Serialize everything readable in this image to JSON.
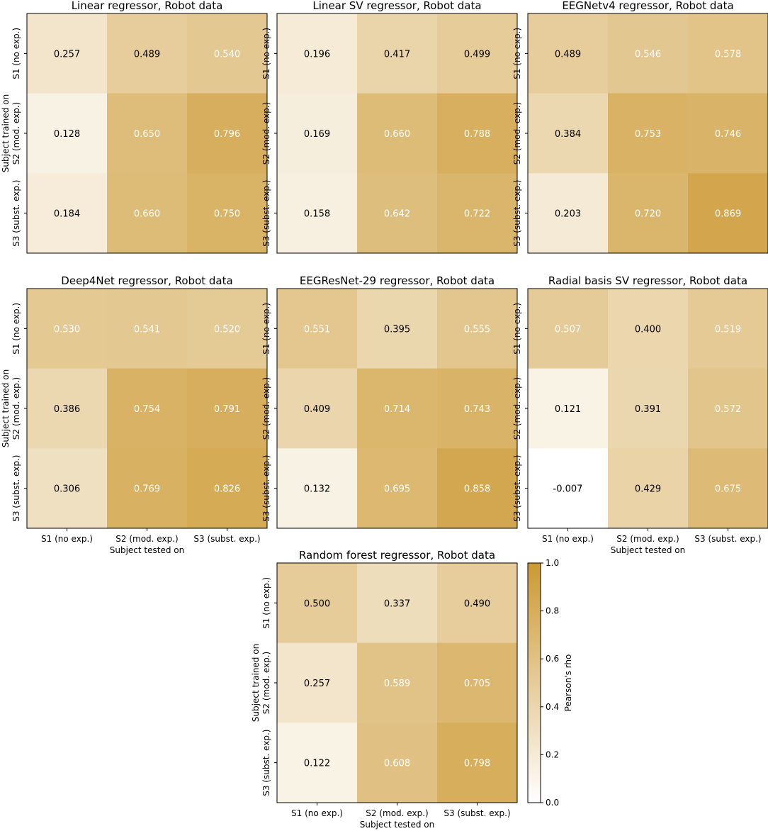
{
  "colors": {
    "low": "#ffffff",
    "high": "#cc9933",
    "frame": "#000000",
    "light_text": "#ffffff",
    "dark_text": "#000000"
  },
  "labels": {
    "rows": [
      "S1 (no exp.)",
      "S2 (mod. exp.)",
      "S3 (subst. exp.)"
    ],
    "cols": [
      "S1 (no exp.)",
      "S2 (mod. exp.)",
      "S3 (subst. exp.)"
    ],
    "ylabel": "Subject trained on",
    "xlabel": "Subject tested on"
  },
  "colorbar": {
    "label": "Pearson's rho",
    "range": [
      0.0,
      1.0
    ],
    "ticks": [
      "0.0",
      "0.2",
      "0.4",
      "0.6",
      "0.8",
      "1.0"
    ]
  },
  "chart_data": [
    {
      "type": "heatmap",
      "title": "Linear regressor, Robot data",
      "values": [
        [
          0.257,
          0.489,
          0.54
        ],
        [
          0.128,
          0.65,
          0.796
        ],
        [
          0.184,
          0.66,
          0.75
        ]
      ],
      "cell_labels": [
        [
          "0.257",
          "0.489",
          "0.540"
        ],
        [
          "0.128",
          "0.650",
          "0.796"
        ],
        [
          "0.184",
          "0.660",
          "0.750"
        ]
      ]
    },
    {
      "type": "heatmap",
      "title": "Linear SV regressor, Robot data",
      "values": [
        [
          0.196,
          0.417,
          0.499
        ],
        [
          0.169,
          0.66,
          0.788
        ],
        [
          0.158,
          0.642,
          0.722
        ]
      ],
      "cell_labels": [
        [
          "0.196",
          "0.417",
          "0.499"
        ],
        [
          "0.169",
          "0.660",
          "0.788"
        ],
        [
          "0.158",
          "0.642",
          "0.722"
        ]
      ]
    },
    {
      "type": "heatmap",
      "title": "EEGNetv4 regressor, Robot data",
      "values": [
        [
          0.489,
          0.546,
          0.578
        ],
        [
          0.384,
          0.753,
          0.746
        ],
        [
          0.203,
          0.72,
          0.869
        ]
      ],
      "cell_labels": [
        [
          "0.489",
          "0.546",
          "0.578"
        ],
        [
          "0.384",
          "0.753",
          "0.746"
        ],
        [
          "0.203",
          "0.720",
          "0.869"
        ]
      ]
    },
    {
      "type": "heatmap",
      "title": "Deep4Net regressor, Robot data",
      "values": [
        [
          0.53,
          0.541,
          0.52
        ],
        [
          0.386,
          0.754,
          0.791
        ],
        [
          0.306,
          0.769,
          0.826
        ]
      ],
      "cell_labels": [
        [
          "0.530",
          "0.541",
          "0.520"
        ],
        [
          "0.386",
          "0.754",
          "0.791"
        ],
        [
          "0.306",
          "0.769",
          "0.826"
        ]
      ]
    },
    {
      "type": "heatmap",
      "title": "EEGResNet-29 regressor, Robot data",
      "values": [
        [
          0.551,
          0.395,
          0.555
        ],
        [
          0.409,
          0.714,
          0.743
        ],
        [
          0.132,
          0.695,
          0.858
        ]
      ],
      "cell_labels": [
        [
          "0.551",
          "0.395",
          "0.555"
        ],
        [
          "0.409",
          "0.714",
          "0.743"
        ],
        [
          "0.132",
          "0.695",
          "0.858"
        ]
      ]
    },
    {
      "type": "heatmap",
      "title": "Radial basis SV regressor, Robot data",
      "values": [
        [
          0.507,
          0.4,
          0.519
        ],
        [
          0.121,
          0.391,
          0.572
        ],
        [
          -0.007,
          0.429,
          0.675
        ]
      ],
      "cell_labels": [
        [
          "0.507",
          "0.400",
          "0.519"
        ],
        [
          "0.121",
          "0.391",
          "0.572"
        ],
        [
          "-0.007",
          "0.429",
          "0.675"
        ]
      ]
    },
    {
      "type": "heatmap",
      "title": "Random forest regressor, Robot data",
      "values": [
        [
          0.5,
          0.337,
          0.49
        ],
        [
          0.257,
          0.589,
          0.705
        ],
        [
          0.122,
          0.608,
          0.798
        ]
      ],
      "cell_labels": [
        [
          "0.500",
          "0.337",
          "0.490"
        ],
        [
          "0.257",
          "0.589",
          "0.705"
        ],
        [
          "0.122",
          "0.608",
          "0.798"
        ]
      ]
    }
  ]
}
